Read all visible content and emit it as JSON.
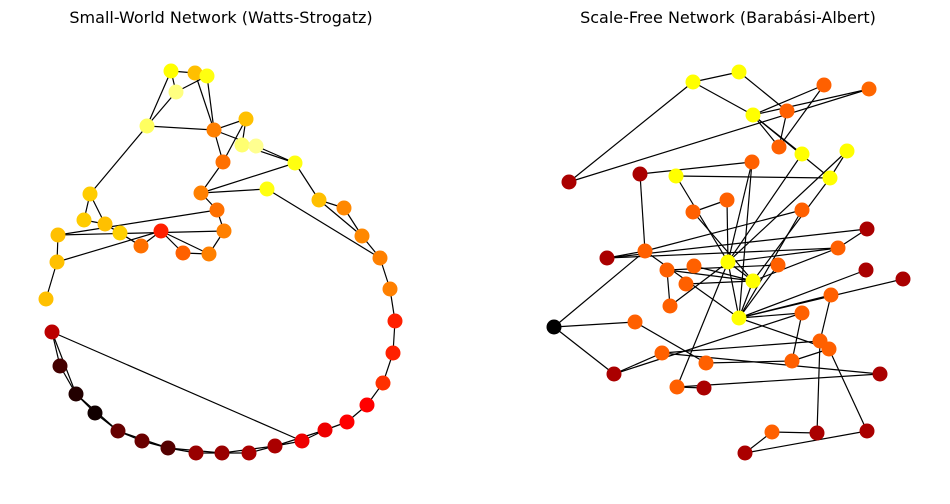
{
  "panels": {
    "left": {
      "title": "Small-World Network (Watts-Strogatz)",
      "nodes": [
        {
          "id": 0,
          "color": "#ffff00"
        },
        {
          "id": 1,
          "color": "#ffbf00"
        },
        {
          "id": 2,
          "color": "#ffff10"
        },
        {
          "id": 3,
          "color": "#ffff80"
        },
        {
          "id": 4,
          "color": "#ffff60"
        },
        {
          "id": 5,
          "color": "#ff8000"
        },
        {
          "id": 6,
          "color": "#ffc000"
        },
        {
          "id": 7,
          "color": "#ffff70"
        },
        {
          "id": 8,
          "color": "#ffff90"
        },
        {
          "id": 9,
          "color": "#ff7000"
        },
        {
          "id": 10,
          "color": "#ffff10"
        },
        {
          "id": 11,
          "color": "#ff8000"
        },
        {
          "id": 12,
          "color": "#ffff10"
        },
        {
          "id": 13,
          "color": "#ff7000"
        },
        {
          "id": 14,
          "color": "#ffcc00"
        },
        {
          "id": 15,
          "color": "#ffcc00"
        },
        {
          "id": 16,
          "color": "#ffc000"
        },
        {
          "id": 17,
          "color": "#ffd000"
        },
        {
          "id": 18,
          "color": "#ff7000"
        },
        {
          "id": 19,
          "color": "#ff2000"
        },
        {
          "id": 20,
          "color": "#ff6000"
        },
        {
          "id": 21,
          "color": "#ff8000"
        },
        {
          "id": 22,
          "color": "#ff8000"
        },
        {
          "id": 23,
          "color": "#ffc000"
        },
        {
          "id": 24,
          "color": "#ffc000"
        },
        {
          "id": 25,
          "color": "#ffc000"
        },
        {
          "id": 26,
          "color": "#ffbf00"
        },
        {
          "id": 27,
          "color": "#ff8800"
        },
        {
          "id": 28,
          "color": "#ff8800"
        },
        {
          "id": 29,
          "color": "#ff8000"
        },
        {
          "id": 30,
          "color": "#ff8000"
        },
        {
          "id": 31,
          "color": "#ff2000"
        },
        {
          "id": 32,
          "color": "#ff2000"
        },
        {
          "id": 33,
          "color": "#ff3000"
        },
        {
          "id": 34,
          "color": "#ff0000"
        },
        {
          "id": 35,
          "color": "#ff0000"
        },
        {
          "id": 36,
          "color": "#ee0000"
        },
        {
          "id": 37,
          "color": "#ee0000"
        },
        {
          "id": 38,
          "color": "#aa0000"
        },
        {
          "id": 39,
          "color": "#aa0000"
        },
        {
          "id": 40,
          "color": "#990000"
        },
        {
          "id": 41,
          "color": "#990000"
        },
        {
          "id": 42,
          "color": "#550000"
        },
        {
          "id": 43,
          "color": "#6a0000"
        },
        {
          "id": 44,
          "color": "#660000"
        },
        {
          "id": 45,
          "color": "#110000"
        },
        {
          "id": 46,
          "color": "#220000"
        },
        {
          "id": 47,
          "color": "#440000"
        },
        {
          "id": 48,
          "color": "#bb0000"
        }
      ],
      "edges": [
        [
          0,
          1
        ],
        [
          1,
          2
        ],
        [
          0,
          3
        ],
        [
          2,
          3
        ],
        [
          0,
          4
        ],
        [
          1,
          5
        ],
        [
          2,
          5
        ],
        [
          3,
          4
        ],
        [
          4,
          5
        ],
        [
          5,
          6
        ],
        [
          6,
          7
        ],
        [
          7,
          8
        ],
        [
          5,
          8
        ],
        [
          6,
          9
        ],
        [
          5,
          9
        ],
        [
          8,
          10
        ],
        [
          7,
          10
        ],
        [
          10,
          11
        ],
        [
          9,
          11
        ],
        [
          11,
          12
        ],
        [
          11,
          13
        ],
        [
          4,
          14
        ],
        [
          14,
          15
        ],
        [
          15,
          16
        ],
        [
          14,
          16
        ],
        [
          16,
          17
        ],
        [
          17,
          18
        ],
        [
          18,
          19
        ],
        [
          19,
          20
        ],
        [
          20,
          21
        ],
        [
          21,
          22
        ],
        [
          22,
          23
        ],
        [
          13,
          23
        ],
        [
          23,
          24
        ],
        [
          19,
          24
        ],
        [
          24,
          25
        ],
        [
          10,
          26
        ],
        [
          26,
          27
        ],
        [
          27,
          28
        ],
        [
          28,
          29
        ],
        [
          29,
          30
        ],
        [
          30,
          31
        ],
        [
          31,
          32
        ],
        [
          32,
          33
        ],
        [
          33,
          34
        ],
        [
          34,
          35
        ],
        [
          35,
          36
        ],
        [
          36,
          37
        ],
        [
          37,
          38
        ],
        [
          38,
          39
        ],
        [
          39,
          40
        ],
        [
          40,
          41
        ],
        [
          41,
          42
        ],
        [
          42,
          43
        ],
        [
          43,
          44
        ],
        [
          44,
          45
        ],
        [
          45,
          46
        ],
        [
          46,
          47
        ],
        [
          47,
          48
        ],
        [
          48,
          37
        ],
        [
          16,
          18
        ],
        [
          26,
          28
        ],
        [
          36,
          38
        ],
        [
          38,
          40
        ],
        [
          40,
          42
        ],
        [
          42,
          44
        ],
        [
          44,
          46
        ],
        [
          46,
          48
        ],
        [
          12,
          29
        ],
        [
          13,
          22
        ],
        [
          19,
          21
        ]
      ]
    },
    "right": {
      "title": "Scale-Free Network (Barabási-Albert)",
      "nodes": [
        {
          "id": 0,
          "color": "#aa0000"
        },
        {
          "id": 1,
          "color": "#ffff00"
        },
        {
          "id": 2,
          "color": "#ff6000"
        },
        {
          "id": 3,
          "color": "#ff6600"
        },
        {
          "id": 4,
          "color": "#ffff00"
        },
        {
          "id": 5,
          "color": "#ff6000"
        },
        {
          "id": 6,
          "color": "#ff6000"
        },
        {
          "id": 7,
          "color": "#ffff00"
        },
        {
          "id": 8,
          "color": "#ffff00"
        },
        {
          "id": 9,
          "color": "#aa0000"
        },
        {
          "id": 10,
          "color": "#ff6000"
        },
        {
          "id": 11,
          "color": "#ffff00"
        },
        {
          "id": 12,
          "color": "#ffff00"
        },
        {
          "id": 13,
          "color": "#ffff00"
        },
        {
          "id": 14,
          "color": "#ff6000"
        },
        {
          "id": 15,
          "color": "#ff6000"
        },
        {
          "id": 16,
          "color": "#ff6000"
        },
        {
          "id": 17,
          "color": "#aa0000"
        },
        {
          "id": 18,
          "color": "#aa0000"
        },
        {
          "id": 19,
          "color": "#ff6000"
        },
        {
          "id": 20,
          "color": "#ff6000"
        },
        {
          "id": 21,
          "color": "#ff6000"
        },
        {
          "id": 22,
          "color": "#ffff00"
        },
        {
          "id": 23,
          "color": "#ff6000"
        },
        {
          "id": 24,
          "color": "#ff6000"
        },
        {
          "id": 25,
          "color": "#aa0000"
        },
        {
          "id": 26,
          "color": "#aa0000"
        },
        {
          "id": 27,
          "color": "#ff6000"
        },
        {
          "id": 28,
          "color": "#ffff00"
        },
        {
          "id": 29,
          "color": "#ff6000"
        },
        {
          "id": 30,
          "color": "#000000"
        },
        {
          "id": 31,
          "color": "#ff6000"
        },
        {
          "id": 32,
          "color": "#ffff00"
        },
        {
          "id": 33,
          "color": "#ff6000"
        },
        {
          "id": 34,
          "color": "#ff6000"
        },
        {
          "id": 35,
          "color": "#ff6000"
        },
        {
          "id": 36,
          "color": "#aa0000"
        },
        {
          "id": 37,
          "color": "#ff6000"
        },
        {
          "id": 38,
          "color": "#ff6000"
        },
        {
          "id": 39,
          "color": "#ff6000"
        },
        {
          "id": 40,
          "color": "#ff6000"
        },
        {
          "id": 41,
          "color": "#aa0000"
        },
        {
          "id": 42,
          "color": "#ff6000"
        },
        {
          "id": 43,
          "color": "#aa0000"
        },
        {
          "id": 44,
          "color": "#aa0000"
        },
        {
          "id": 45,
          "color": "#ff6000"
        },
        {
          "id": 46,
          "color": "#aa0000"
        },
        {
          "id": 47,
          "color": "#aa0000"
        }
      ],
      "edges": [
        [
          0,
          4
        ],
        [
          0,
          3
        ],
        [
          1,
          4
        ],
        [
          1,
          5
        ],
        [
          2,
          6
        ],
        [
          2,
          7
        ],
        [
          3,
          7
        ],
        [
          4,
          7
        ],
        [
          5,
          6
        ],
        [
          6,
          7
        ],
        [
          7,
          12
        ],
        [
          8,
          7
        ],
        [
          8,
          22
        ],
        [
          9,
          10
        ],
        [
          10,
          22
        ],
        [
          10,
          32
        ],
        [
          11,
          12
        ],
        [
          11,
          22
        ],
        [
          12,
          28
        ],
        [
          12,
          13
        ],
        [
          13,
          22
        ],
        [
          14,
          22
        ],
        [
          14,
          16
        ],
        [
          15,
          32
        ],
        [
          16,
          28
        ],
        [
          17,
          24
        ],
        [
          17,
          18
        ],
        [
          18,
          24
        ],
        [
          18,
          19
        ],
        [
          19,
          32
        ],
        [
          20,
          28
        ],
        [
          20,
          23
        ],
        [
          21,
          28
        ],
        [
          22,
          28
        ],
        [
          22,
          32
        ],
        [
          23,
          32
        ],
        [
          24,
          28
        ],
        [
          25,
          32
        ],
        [
          26,
          32
        ],
        [
          27,
          28
        ],
        [
          28,
          32
        ],
        [
          29,
          22
        ],
        [
          29,
          20
        ],
        [
          30,
          19
        ],
        [
          30,
          31
        ],
        [
          31,
          38
        ],
        [
          32,
          33
        ],
        [
          32,
          34
        ],
        [
          33,
          35
        ],
        [
          34,
          36
        ],
        [
          34,
          39
        ],
        [
          35,
          37
        ],
        [
          36,
          37
        ],
        [
          37,
          41
        ],
        [
          38,
          39
        ],
        [
          39,
          40
        ],
        [
          40,
          32
        ],
        [
          41,
          42
        ],
        [
          42,
          22
        ],
        [
          43,
          42
        ],
        [
          44,
          35
        ],
        [
          44,
          45
        ],
        [
          45,
          46
        ],
        [
          46,
          47
        ],
        [
          47,
          40
        ],
        [
          9,
          19
        ],
        [
          15,
          19
        ],
        [
          24,
          22
        ],
        [
          36,
          30
        ]
      ]
    }
  }
}
